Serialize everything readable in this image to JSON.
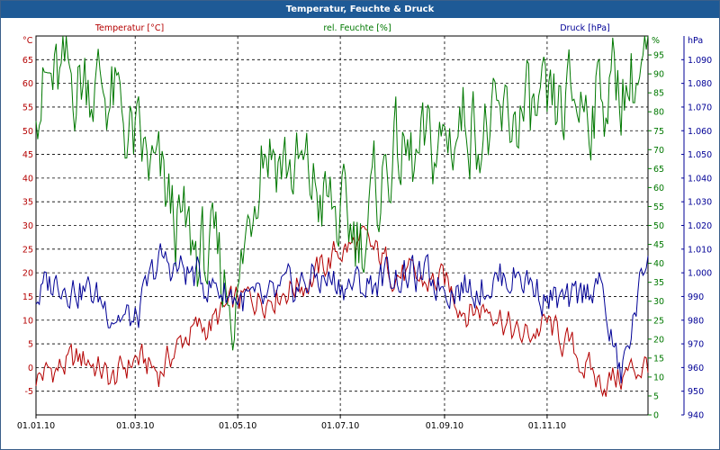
{
  "window": {
    "title": "Temperatur, Feuchte & Druck"
  },
  "colors": {
    "temperature": "#b40000",
    "humidity": "#007800",
    "pressure": "#000096",
    "grid": "#000000"
  },
  "chart_data": {
    "type": "line",
    "title": "Temperatur, Feuchte & Druck",
    "xlabel": "",
    "x_ticks": [
      "01.01.10",
      "01.03.10",
      "01.05.10",
      "01.07.10",
      "01.09.10",
      "01.11.10"
    ],
    "x_tick_days": [
      0,
      59,
      120,
      181,
      243,
      304
    ],
    "xlim_days": [
      0,
      364
    ],
    "grid": true,
    "axes": {
      "temperature": {
        "label": "Temperatur [°C]",
        "unit": "°C",
        "ylim": [
          -10,
          70
        ],
        "ticks": [
          -5,
          0,
          5,
          10,
          15,
          20,
          25,
          30,
          35,
          40,
          45,
          50,
          55,
          60,
          65
        ]
      },
      "humidity": {
        "label": "rel. Feuchte [%]",
        "unit": "%",
        "ylim": [
          0,
          100
        ],
        "ticks": [
          0,
          5,
          10,
          15,
          20,
          25,
          30,
          35,
          40,
          45,
          50,
          55,
          60,
          65,
          70,
          75,
          80,
          85,
          90,
          95
        ]
      },
      "pressure": {
        "label": "Druck [hPa]",
        "unit": "hPa",
        "ylim": [
          940,
          1100
        ],
        "ticks": [
          "940",
          "950",
          "960",
          "970",
          "980",
          "990",
          "1.000",
          "1.010",
          "1.020",
          "1.030",
          "1.040",
          "1.050",
          "1.060",
          "1.070",
          "1.080",
          "1.090"
        ]
      }
    },
    "series": [
      {
        "name": "Temperatur [°C]",
        "axis": "temperature",
        "x": [
          "01.01.10",
          "15.01.10",
          "01.02.10",
          "15.02.10",
          "01.03.10",
          "15.03.10",
          "01.04.10",
          "15.04.10",
          "01.05.10",
          "15.05.10",
          "01.06.10",
          "15.06.10",
          "01.07.10",
          "15.07.10",
          "01.08.10",
          "15.08.10",
          "01.09.10",
          "15.09.10",
          "01.10.10",
          "15.10.10",
          "01.11.10",
          "15.11.10",
          "01.12.10",
          "15.12.10",
          "31.12.10"
        ],
        "values": [
          -2,
          0,
          2,
          -3,
          2,
          -1,
          7,
          9,
          14,
          15,
          17,
          19,
          25,
          26,
          21,
          18,
          18,
          12,
          13,
          6,
          9,
          4,
          -3,
          -2,
          1
        ]
      },
      {
        "name": "rel. Feuchte [%]",
        "axis": "humidity",
        "x": [
          "01.01.10",
          "15.01.10",
          "01.02.10",
          "15.02.10",
          "01.03.10",
          "15.03.10",
          "01.04.10",
          "15.04.10",
          "01.05.10",
          "15.05.10",
          "01.06.10",
          "15.06.10",
          "01.07.10",
          "15.07.10",
          "01.08.10",
          "15.08.10",
          "01.09.10",
          "15.09.10",
          "01.10.10",
          "15.10.10",
          "01.11.10",
          "15.11.10",
          "01.12.10",
          "15.12.10",
          "31.12.10"
        ],
        "values": [
          88,
          86,
          90,
          84,
          70,
          60,
          45,
          40,
          30,
          75,
          65,
          60,
          50,
          48,
          70,
          65,
          72,
          80,
          72,
          80,
          75,
          82,
          85,
          88,
          90
        ]
      },
      {
        "name": "Druck [hPa]",
        "axis": "pressure",
        "x": [
          "01.01.10",
          "15.01.10",
          "01.02.10",
          "15.02.10",
          "01.03.10",
          "15.03.10",
          "01.04.10",
          "15.04.10",
          "01.05.10",
          "15.05.10",
          "01.06.10",
          "15.06.10",
          "01.07.10",
          "15.07.10",
          "01.08.10",
          "15.08.10",
          "01.09.10",
          "15.09.10",
          "01.10.10",
          "15.10.10",
          "01.11.10",
          "15.11.10",
          "01.12.10",
          "15.12.10",
          "31.12.10"
        ],
        "values": [
          990,
          998,
          992,
          985,
          978,
          1005,
          1000,
          995,
          990,
          985,
          992,
          998,
          996,
          994,
          1000,
          998,
          996,
          994,
          997,
          1000,
          990,
          985,
          998,
          955,
          1010
        ]
      }
    ]
  }
}
